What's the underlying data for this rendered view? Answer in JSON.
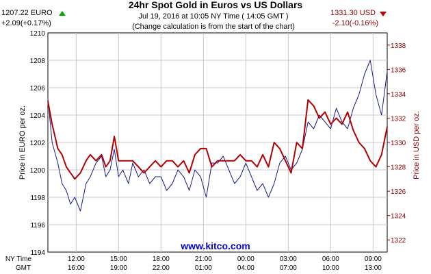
{
  "chart_data": {
    "type": "line",
    "title": "24hr Spot Gold in Euros vs US Dollars",
    "subtitle": "Jul 19, 2016 at 10:05 NY Time ( 14:05 GMT )",
    "note": "(Change calculation is from the start of the chart)",
    "watermark": "www.kitco.com",
    "left_price": {
      "value": "1207.22 EURO",
      "change": "+2.09(+0.17%)",
      "direction": "up",
      "color": "#00aa00"
    },
    "right_price": {
      "value": "1331.30 USD",
      "change": "-2.10(-0.16%)",
      "direction": "down",
      "color": "#cc0000"
    },
    "ylabel_left": "Price in EURO per oz.",
    "ylabel_right": "Price in USD per oz.",
    "ylim_left": [
      1194,
      1210
    ],
    "ylim_right": [
      1321,
      1339
    ],
    "yticks_left": [
      "1196",
      "1198",
      "1200",
      "1202",
      "1204",
      "1206",
      "1208",
      "1210"
    ],
    "yticks_left_values": [
      1196,
      1198,
      1200,
      1202,
      1204,
      1206,
      1208,
      1210
    ],
    "yticks_right": [
      "1322",
      "1324",
      "1326",
      "1328",
      "1330",
      "1332",
      "1334",
      "1336",
      "1338"
    ],
    "yticks_right_values": [
      1322,
      1324,
      1326,
      1328,
      1330,
      1332,
      1334,
      1336,
      1338
    ],
    "x_row_labels": [
      "NY Time",
      "GMT"
    ],
    "x_range_hours": [
      0,
      24
    ],
    "xticks": [
      {
        "t": 2,
        "ny": "12:00",
        "gmt": "16:00"
      },
      {
        "t": 5,
        "ny": "15:00",
        "gmt": "19:00"
      },
      {
        "t": 8,
        "ny": "18:00",
        "gmt": "22:00"
      },
      {
        "t": 11,
        "ny": "21:00",
        "gmt": "01:00"
      },
      {
        "t": 14,
        "ny": "00:00",
        "gmt": "04:00"
      },
      {
        "t": 17,
        "ny": "03:00",
        "gmt": "07:00"
      },
      {
        "t": 20,
        "ny": "06:00",
        "gmt": "10:00"
      },
      {
        "t": 23,
        "ny": "09:00",
        "gmt": "13:00"
      }
    ],
    "grid": true,
    "series": [
      {
        "axis": "left",
        "color": "#1a1a8c",
        "x": [
          0,
          0.3,
          0.7,
          1.0,
          1.3,
          1.6,
          1.9,
          2.3,
          2.7,
          3.0,
          3.4,
          3.8,
          4.1,
          4.4,
          4.7,
          5.0,
          5.3,
          5.7,
          6.0,
          6.4,
          6.8,
          7.2,
          7.6,
          8.0,
          8.4,
          8.8,
          9.2,
          9.6,
          10.0,
          10.4,
          10.8,
          11.2,
          11.6,
          12.0,
          12.4,
          12.8,
          13.2,
          13.6,
          14.0,
          14.4,
          14.8,
          15.2,
          15.6,
          16.0,
          16.4,
          16.8,
          17.2,
          17.6,
          18.0,
          18.4,
          18.8,
          19.2,
          19.6,
          20.0,
          20.4,
          20.8,
          21.2,
          21.6,
          22.0,
          22.4,
          22.8,
          23.2,
          23.6,
          24.0
        ],
        "values": [
          1205.2,
          1202.0,
          1200.5,
          1199.0,
          1198.5,
          1197.5,
          1198.0,
          1197.0,
          1199.0,
          1199.5,
          1200.5,
          1201.0,
          1199.5,
          1200.0,
          1201.5,
          1199.5,
          1200.0,
          1199.0,
          1200.5,
          1199.5,
          1200.0,
          1199.0,
          1199.5,
          1199.5,
          1198.5,
          1199.0,
          1200.0,
          1199.5,
          1198.5,
          1200.0,
          1199.5,
          1198.0,
          1200.5,
          1200.5,
          1201.0,
          1200.0,
          1199.0,
          1199.5,
          1200.5,
          1199.5,
          1198.5,
          1199.0,
          1198.0,
          1199.0,
          1200.5,
          1201.0,
          1200.0,
          1200.5,
          1201.5,
          1203.5,
          1203.0,
          1204.0,
          1203.5,
          1203.0,
          1204.5,
          1203.5,
          1203.0,
          1204.5,
          1205.5,
          1207.0,
          1208.0,
          1205.5,
          1204.0,
          1207.2
        ]
      },
      {
        "axis": "right",
        "color": "#b00000",
        "x": [
          0,
          0.3,
          0.7,
          1.0,
          1.3,
          1.6,
          1.9,
          2.3,
          2.7,
          3.0,
          3.4,
          3.8,
          4.1,
          4.4,
          4.7,
          5.0,
          5.3,
          5.7,
          6.0,
          6.4,
          6.8,
          7.2,
          7.6,
          8.0,
          8.4,
          8.8,
          9.2,
          9.6,
          10.0,
          10.4,
          10.8,
          11.2,
          11.6,
          12.0,
          12.4,
          12.8,
          13.2,
          13.6,
          14.0,
          14.4,
          14.8,
          15.2,
          15.6,
          16.0,
          16.4,
          16.8,
          17.2,
          17.6,
          18.0,
          18.4,
          18.8,
          19.2,
          19.6,
          20.0,
          20.4,
          20.8,
          21.2,
          21.6,
          22.0,
          22.4,
          22.8,
          23.2,
          23.6,
          24.0
        ],
        "values": [
          1333.4,
          1331.5,
          1329.5,
          1329.0,
          1328.0,
          1327.5,
          1327.0,
          1327.5,
          1328.5,
          1329.0,
          1328.5,
          1329.0,
          1328.0,
          1328.5,
          1330.5,
          1328.5,
          1328.5,
          1328.5,
          1328.5,
          1328.0,
          1327.5,
          1328.0,
          1328.5,
          1328.0,
          1328.5,
          1328.5,
          1328.0,
          1328.5,
          1327.5,
          1329.0,
          1329.5,
          1329.5,
          1328.0,
          1328.5,
          1328.5,
          1328.5,
          1328.5,
          1329.0,
          1328.5,
          1328.5,
          1328.0,
          1329.0,
          1328.0,
          1330.0,
          1329.5,
          1328.5,
          1327.5,
          1330.0,
          1329.5,
          1333.5,
          1333.0,
          1332.0,
          1332.5,
          1331.5,
          1332.0,
          1331.5,
          1332.5,
          1331.0,
          1330.0,
          1329.5,
          1328.5,
          1328.0,
          1329.0,
          1331.3
        ]
      }
    ]
  }
}
